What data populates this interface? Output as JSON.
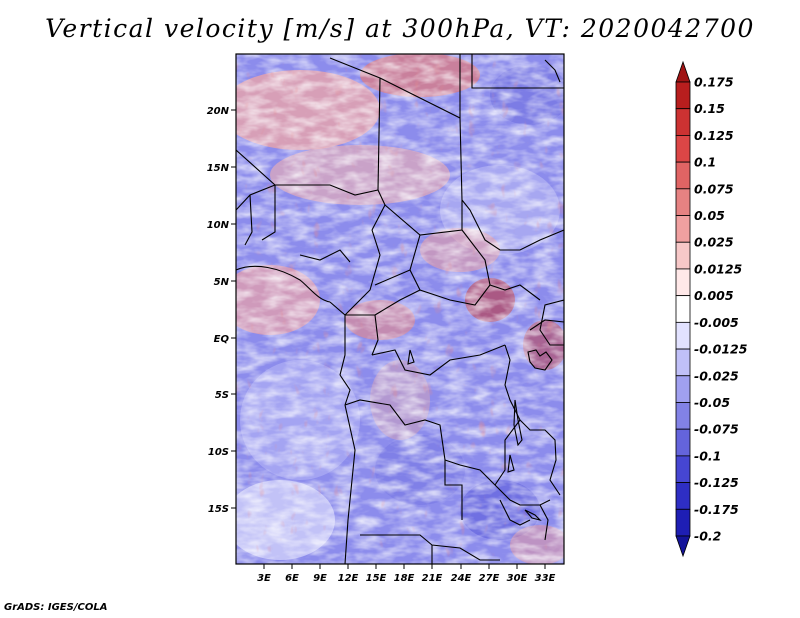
{
  "title": "Vertical velocity [m/s] at 300hPa, VT: 2020042700",
  "credit": "GrADS: IGES/COLA",
  "map": {
    "lat_labels": [
      "20N",
      "15N",
      "10N",
      "5N",
      "EQ",
      "5S",
      "10S",
      "15S"
    ],
    "lon_labels": [
      "3E",
      "6E",
      "9E",
      "12E",
      "15E",
      "18E",
      "21E",
      "24E",
      "27E",
      "30E",
      "33E"
    ],
    "field": "vertical velocity",
    "pressure_level": "300hPa",
    "valid_time": "2020042700"
  },
  "colorbar": {
    "labels": [
      "0.175",
      "0.15",
      "0.125",
      "0.1",
      "0.075",
      "0.05",
      "0.025",
      "0.0125",
      "0.005",
      "-0.005",
      "-0.0125",
      "-0.025",
      "-0.05",
      "-0.075",
      "-0.1",
      "-0.125",
      "-0.175",
      "-0.2"
    ],
    "colors": [
      "#a01414",
      "#b81e1e",
      "#cc3232",
      "#dc4646",
      "#e06464",
      "#e68282",
      "#f0a0a0",
      "#f7c8c8",
      "#ffe8e8",
      "#ffffff",
      "#e2e2ff",
      "#c0c0f8",
      "#a0a0f0",
      "#8282e6",
      "#6464dc",
      "#4646d2",
      "#2e2ec4",
      "#1e1eb4",
      "#14149a"
    ]
  }
}
